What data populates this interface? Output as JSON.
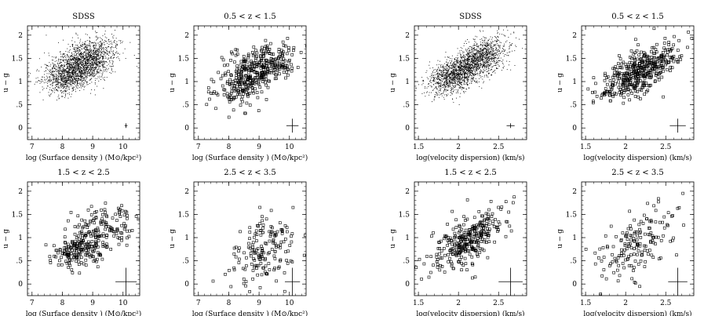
{
  "figure": {
    "background": "#ffffff",
    "ink": "#000000"
  },
  "chart_data": [
    {
      "type": "scatter",
      "marker": "dot",
      "title": "SDSS",
      "xlabel": "log (Surface density ) (M⊙/kpc²)",
      "ylabel": "u − g",
      "xlim": [
        6.85,
        10.55
      ],
      "ylim": [
        -0.25,
        2.2
      ],
      "xticks": [
        7,
        8,
        9,
        10
      ],
      "xticklabels": [
        "7",
        "8",
        "9",
        "10"
      ],
      "yticks": [
        0,
        0.5,
        1,
        1.5,
        2
      ],
      "yticklabels": [
        "0",
        ".5",
        "1",
        "1.5",
        "2"
      ],
      "error_bar": {
        "x": 10.1,
        "y": 0.05,
        "xerr": 0.05,
        "yerr": 0.05
      },
      "cloud": {
        "count": 2400,
        "seed": 11,
        "components": [
          {
            "w": 0.55,
            "mx": 8.85,
            "my": 1.5,
            "sx": 0.45,
            "sy": 0.22,
            "rho": 0.3
          },
          {
            "w": 0.45,
            "mx": 8.2,
            "my": 1.15,
            "sx": 0.45,
            "sy": 0.2,
            "rho": 0.25
          }
        ]
      }
    },
    {
      "type": "scatter",
      "marker": "square",
      "title": "0.5 < z < 1.5",
      "xlabel": "log (Surface density ) (M⊙/kpc²)",
      "ylabel": "u − g",
      "xlim": [
        6.85,
        10.55
      ],
      "ylim": [
        -0.25,
        2.2
      ],
      "xticks": [
        7,
        8,
        9,
        10
      ],
      "xticklabels": [
        "7",
        "8",
        "9",
        "10"
      ],
      "yticks": [
        0,
        0.5,
        1,
        1.5,
        2
      ],
      "yticklabels": [
        "0",
        ".5",
        "1",
        "1.5",
        "2"
      ],
      "error_bar": {
        "x": 10.1,
        "y": 0.05,
        "xerr": 0.2,
        "yerr": 0.15
      },
      "cloud": {
        "count": 430,
        "seed": 22,
        "components": [
          {
            "w": 0.6,
            "mx": 9.15,
            "my": 1.35,
            "sx": 0.5,
            "sy": 0.22,
            "rho": 0.3
          },
          {
            "w": 0.4,
            "mx": 8.35,
            "my": 0.95,
            "sx": 0.4,
            "sy": 0.25,
            "rho": 0.25
          }
        ]
      }
    },
    {
      "type": "scatter",
      "marker": "dot",
      "title": "SDSS",
      "xlabel": "log(velocity dispersion) (km/s)",
      "ylabel": "u − g",
      "xlim": [
        1.45,
        2.85
      ],
      "ylim": [
        -0.25,
        2.2
      ],
      "xticks": [
        1.5,
        2,
        2.5
      ],
      "xticklabels": [
        "1.5",
        "2",
        "2.5"
      ],
      "yticks": [
        0,
        0.5,
        1,
        1.5,
        2
      ],
      "yticklabels": [
        "0",
        ".5",
        "1",
        "1.5",
        "2"
      ],
      "error_bar": {
        "x": 2.65,
        "y": 0.05,
        "xerr": 0.05,
        "yerr": 0.05
      },
      "cloud": {
        "count": 2400,
        "seed": 33,
        "components": [
          {
            "w": 0.5,
            "mx": 2.25,
            "my": 1.5,
            "sx": 0.17,
            "sy": 0.22,
            "rho": 0.5
          },
          {
            "w": 0.5,
            "mx": 1.95,
            "my": 1.15,
            "sx": 0.17,
            "sy": 0.2,
            "rho": 0.45
          }
        ]
      }
    },
    {
      "type": "scatter",
      "marker": "square",
      "title": "0.5 < z < 1.5",
      "xlabel": "log(velocity dispersion) (km/s)",
      "ylabel": "u − g",
      "xlim": [
        1.45,
        2.85
      ],
      "ylim": [
        -0.25,
        2.2
      ],
      "xticks": [
        1.5,
        2,
        2.5
      ],
      "xticklabels": [
        "1.5",
        "2",
        "2.5"
      ],
      "yticks": [
        0,
        0.5,
        1,
        1.5,
        2
      ],
      "yticklabels": [
        "0",
        ".5",
        "1",
        "1.5",
        "2"
      ],
      "error_bar": {
        "x": 2.65,
        "y": 0.05,
        "xerr": 0.1,
        "yerr": 0.15
      },
      "cloud": {
        "count": 430,
        "seed": 44,
        "components": [
          {
            "w": 1.0,
            "mx": 2.15,
            "my": 1.2,
            "sx": 0.25,
            "sy": 0.3,
            "rho": 0.65
          }
        ]
      }
    },
    {
      "type": "scatter",
      "marker": "square",
      "title": "1.5 < z < 2.5",
      "xlabel": "log (Surface density ) (M⊙/kpc²)",
      "ylabel": "u − g",
      "xlim": [
        6.85,
        10.55
      ],
      "ylim": [
        -0.25,
        2.2
      ],
      "xticks": [
        7,
        8,
        9,
        10
      ],
      "xticklabels": [
        "7",
        "8",
        "9",
        "10"
      ],
      "yticks": [
        0,
        0.5,
        1,
        1.5,
        2
      ],
      "yticklabels": [
        "0",
        ".5",
        "1",
        "1.5",
        "2"
      ],
      "error_bar": {
        "x": 10.1,
        "y": 0.05,
        "xerr": 0.35,
        "yerr": 0.3
      },
      "cloud": {
        "count": 320,
        "seed": 55,
        "components": [
          {
            "w": 0.55,
            "mx": 9.3,
            "my": 1.15,
            "sx": 0.55,
            "sy": 0.3,
            "rho": 0.3
          },
          {
            "w": 0.45,
            "mx": 8.45,
            "my": 0.75,
            "sx": 0.4,
            "sy": 0.18,
            "rho": 0.2
          }
        ]
      }
    },
    {
      "type": "scatter",
      "marker": "square",
      "title": "2.5 < z < 3.5",
      "xlabel": "log (Surface density ) (M⊙/kpc²)",
      "ylabel": "u − g",
      "xlim": [
        6.85,
        10.55
      ],
      "ylim": [
        -0.25,
        2.2
      ],
      "xticks": [
        7,
        8,
        9,
        10
      ],
      "xticklabels": [
        "7",
        "8",
        "9",
        "10"
      ],
      "yticks": [
        0,
        0.5,
        1,
        1.5,
        2
      ],
      "yticklabels": [
        "0",
        ".5",
        "1",
        "1.5",
        "2"
      ],
      "error_bar": {
        "x": 10.1,
        "y": 0.05,
        "xerr": 0.25,
        "yerr": 0.3
      },
      "cloud": {
        "count": 170,
        "seed": 66,
        "components": [
          {
            "w": 1.0,
            "mx": 9.2,
            "my": 0.75,
            "sx": 0.55,
            "sy": 0.35,
            "rho": 0.35
          }
        ]
      }
    },
    {
      "type": "scatter",
      "marker": "square",
      "title": "1.5 < z < 2.5",
      "xlabel": "log(velocity dispersion) (km/s)",
      "ylabel": "u − g",
      "xlim": [
        1.45,
        2.85
      ],
      "ylim": [
        -0.25,
        2.2
      ],
      "xticks": [
        1.5,
        2,
        2.5
      ],
      "xticklabels": [
        "1.5",
        "2",
        "2.5"
      ],
      "yticks": [
        0,
        0.5,
        1,
        1.5,
        2
      ],
      "yticklabels": [
        "0",
        ".5",
        "1",
        "1.5",
        "2"
      ],
      "error_bar": {
        "x": 2.65,
        "y": 0.05,
        "xerr": 0.15,
        "yerr": 0.3
      },
      "cloud": {
        "count": 320,
        "seed": 77,
        "components": [
          {
            "w": 1.0,
            "mx": 2.12,
            "my": 0.95,
            "sx": 0.24,
            "sy": 0.33,
            "rho": 0.65
          }
        ]
      }
    },
    {
      "type": "scatter",
      "marker": "square",
      "title": "2.5 < z < 3.5",
      "xlabel": "log(velocity dispersion) (km/s)",
      "ylabel": "u − g",
      "xlim": [
        1.45,
        2.85
      ],
      "ylim": [
        -0.25,
        2.2
      ],
      "xticks": [
        1.5,
        2,
        2.5
      ],
      "xticklabels": [
        "1.5",
        "2",
        "2.5"
      ],
      "yticks": [
        0,
        0.5,
        1,
        1.5,
        2
      ],
      "yticklabels": [
        "0",
        ".5",
        "1",
        "1.5",
        "2"
      ],
      "error_bar": {
        "x": 2.65,
        "y": 0.05,
        "xerr": 0.12,
        "yerr": 0.3
      },
      "cloud": {
        "count": 170,
        "seed": 88,
        "components": [
          {
            "w": 1.0,
            "mx": 2.15,
            "my": 0.85,
            "sx": 0.25,
            "sy": 0.38,
            "rho": 0.55
          }
        ]
      }
    }
  ]
}
